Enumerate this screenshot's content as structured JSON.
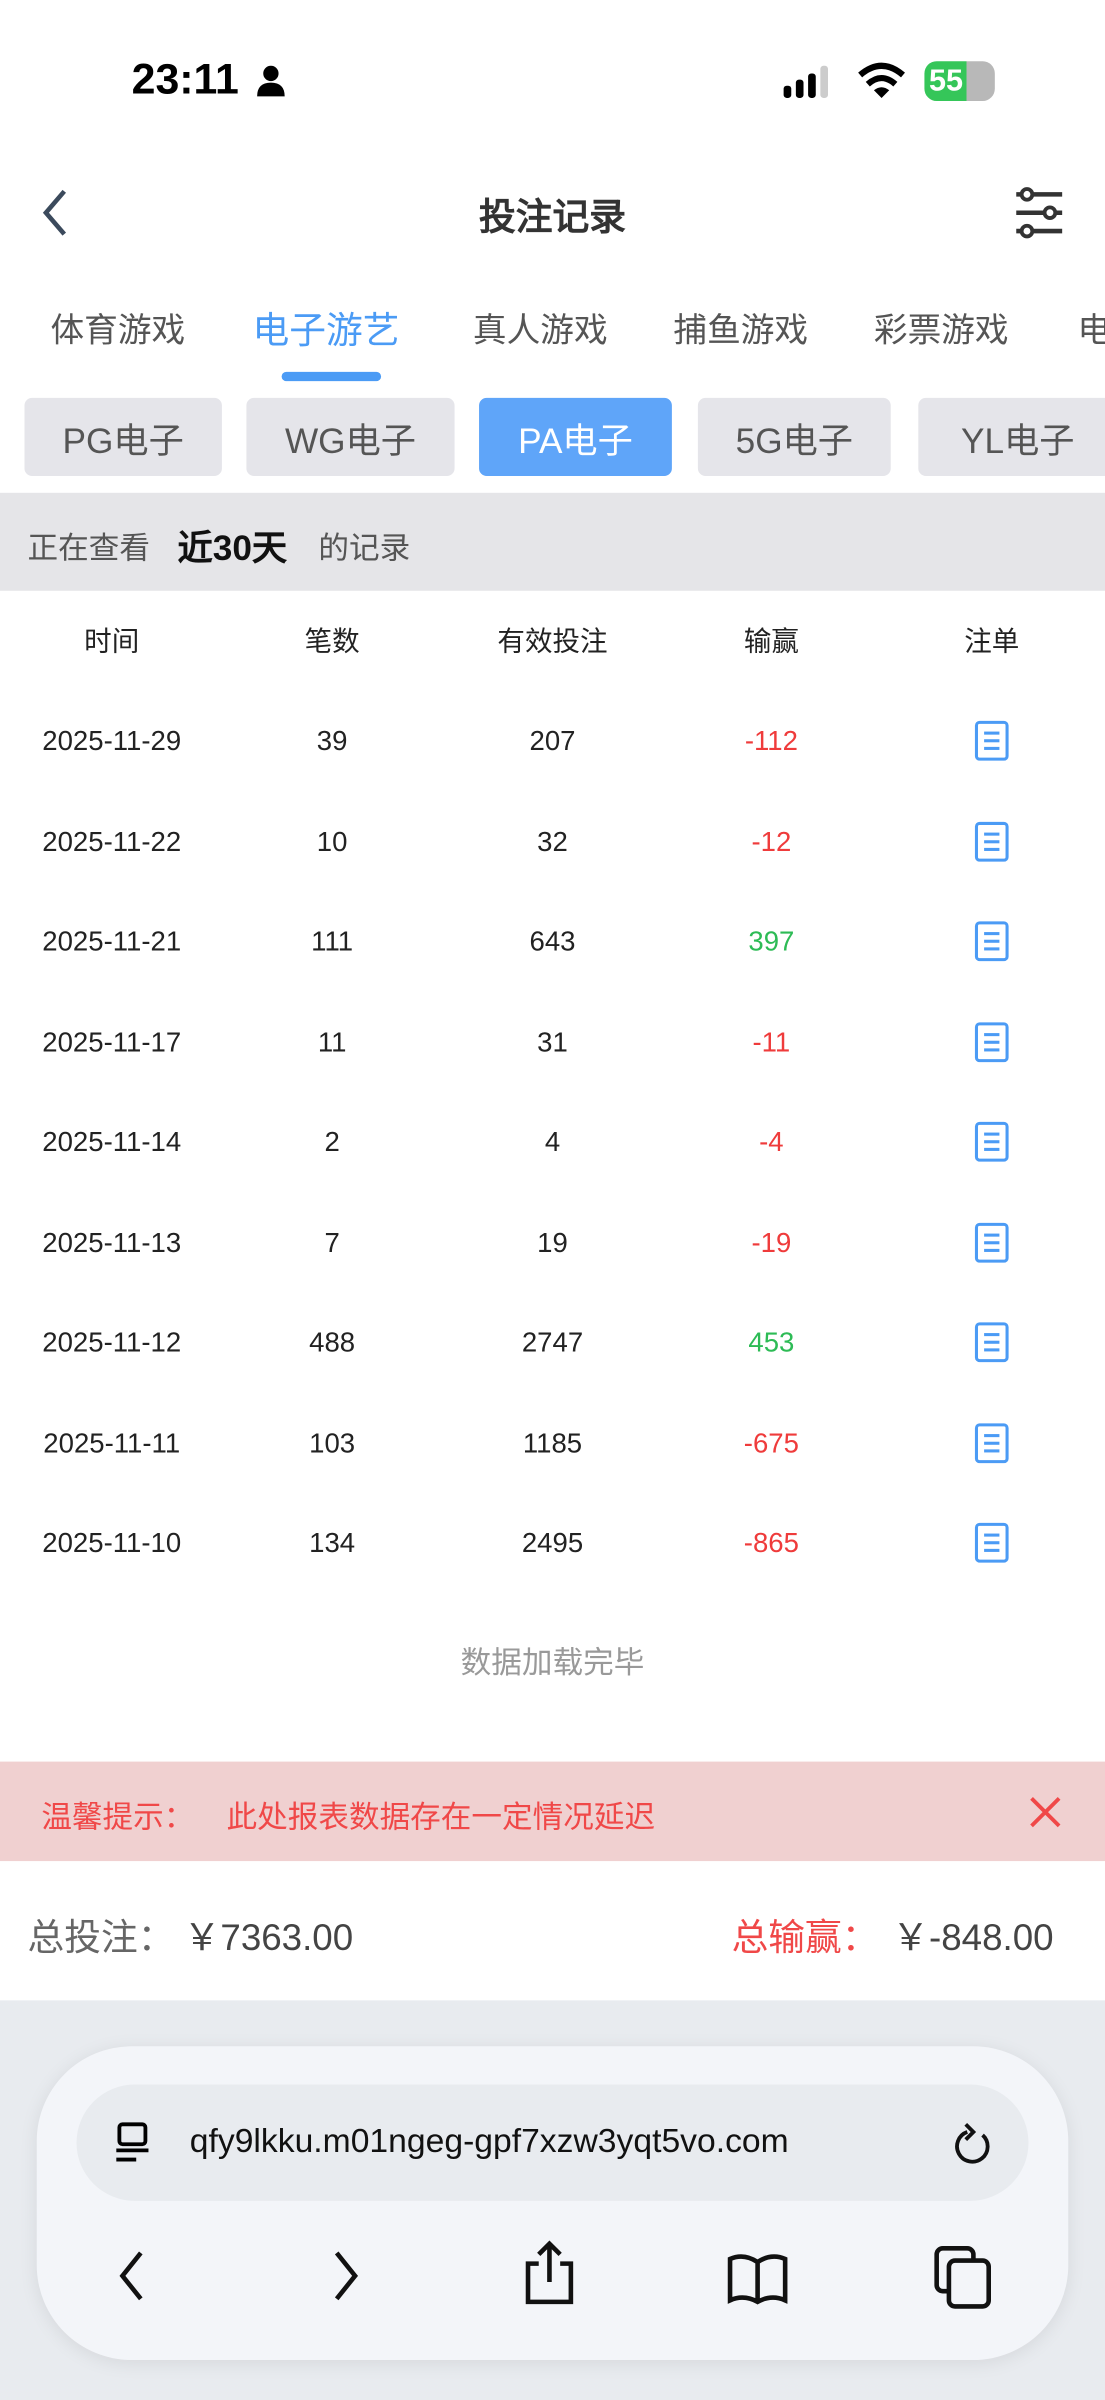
{
  "status_bar": {
    "time": "23:11",
    "battery": "55"
  },
  "header": {
    "title": "投注记录"
  },
  "tabs": [
    {
      "label": "体育游戏"
    },
    {
      "label": "电子游艺",
      "active": true
    },
    {
      "label": "真人游戏"
    },
    {
      "label": "捕鱼游戏"
    },
    {
      "label": "彩票游戏"
    },
    {
      "label": "电"
    }
  ],
  "providers": [
    {
      "label": "PG电子"
    },
    {
      "label": "WG电子"
    },
    {
      "label": "PA电子",
      "active": true
    },
    {
      "label": "5G电子"
    },
    {
      "label": "YL电子"
    }
  ],
  "range": {
    "prefix": "正在查看",
    "value": "近30天",
    "suffix": "的记录"
  },
  "table": {
    "headers": [
      "时间",
      "笔数",
      "有效投注",
      "输赢",
      "注单"
    ],
    "rows": [
      [
        "2025-11-29",
        "39",
        "207",
        "-112"
      ],
      [
        "2025-11-22",
        "10",
        "32",
        "-12"
      ],
      [
        "2025-11-21",
        "111",
        "643",
        "397"
      ],
      [
        "2025-11-17",
        "11",
        "31",
        "-11"
      ],
      [
        "2025-11-14",
        "2",
        "4",
        "-4"
      ],
      [
        "2025-11-13",
        "7",
        "19",
        "-19"
      ],
      [
        "2025-11-12",
        "488",
        "2747",
        "453"
      ],
      [
        "2025-11-11",
        "103",
        "1185",
        "-675"
      ],
      [
        "2025-11-10",
        "134",
        "2495",
        "-865"
      ]
    ]
  },
  "load_done": "数据加载完毕",
  "notice": {
    "label": "温馨提示：",
    "text": "此处报表数据存在一定情况延迟"
  },
  "totals": {
    "bet_label": "总投注：",
    "bet_value": "￥7363.00",
    "win_label": "总输赢：",
    "win_value": "￥-848.00"
  },
  "browser": {
    "url": "qfy9lkku.m01ngeg-gpf7xzw3yqt5vo.com"
  },
  "colors": {
    "accent": "#4b9bf5",
    "loss": "#ef3b3b",
    "win": "#2dbb55",
    "notice_bg": "#f0d0d0"
  }
}
